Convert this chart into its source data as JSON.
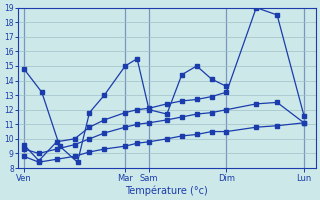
{
  "xlabel": "Température (°c)",
  "background_color": "#cce8e8",
  "line_color": "#1a3cad",
  "grid_color": "#a0c0c8",
  "ylim": [
    8,
    19
  ],
  "yticks": [
    8,
    9,
    10,
    11,
    12,
    13,
    14,
    15,
    16,
    17,
    18,
    19
  ],
  "xlim": [
    0,
    1
  ],
  "day_positions": [
    0.02,
    0.36,
    0.44,
    0.7,
    0.96
  ],
  "day_labels": [
    "Ven",
    "Mar",
    "Sam",
    "Dim",
    "Lun"
  ],
  "line1_x": [
    0.02,
    0.08,
    0.14,
    0.2,
    0.24,
    0.29,
    0.36,
    0.4,
    0.44,
    0.5,
    0.55,
    0.6,
    0.65,
    0.7
  ],
  "line1_y": [
    14.8,
    13.2,
    9.5,
    8.4,
    11.8,
    13.0,
    15.0,
    15.5,
    12.0,
    11.7,
    14.4,
    15.0,
    14.1,
    13.6
  ],
  "line2_x": [
    0.02,
    0.07,
    0.13,
    0.19,
    0.24,
    0.29,
    0.36,
    0.4,
    0.44,
    0.5,
    0.55,
    0.6,
    0.65,
    0.7,
    0.8,
    0.87,
    0.96
  ],
  "line2_y": [
    9.6,
    8.5,
    9.8,
    10.0,
    10.8,
    11.3,
    11.8,
    12.0,
    12.1,
    12.4,
    12.6,
    12.7,
    12.9,
    13.2,
    19.0,
    18.5,
    11.6
  ],
  "line3_x": [
    0.02,
    0.07,
    0.13,
    0.19,
    0.24,
    0.29,
    0.36,
    0.4,
    0.44,
    0.5,
    0.55,
    0.6,
    0.65,
    0.7,
    0.8,
    0.87,
    0.96
  ],
  "line3_y": [
    9.3,
    9.0,
    9.3,
    9.6,
    10.0,
    10.4,
    10.8,
    11.0,
    11.1,
    11.3,
    11.5,
    11.7,
    11.8,
    12.0,
    12.4,
    12.5,
    11.1
  ],
  "line4_x": [
    0.02,
    0.07,
    0.13,
    0.19,
    0.24,
    0.29,
    0.36,
    0.4,
    0.44,
    0.5,
    0.55,
    0.6,
    0.65,
    0.7,
    0.8,
    0.87,
    0.96
  ],
  "line4_y": [
    8.8,
    8.4,
    8.6,
    8.8,
    9.1,
    9.3,
    9.5,
    9.7,
    9.8,
    10.0,
    10.2,
    10.3,
    10.5,
    10.5,
    10.8,
    10.9,
    11.1
  ]
}
